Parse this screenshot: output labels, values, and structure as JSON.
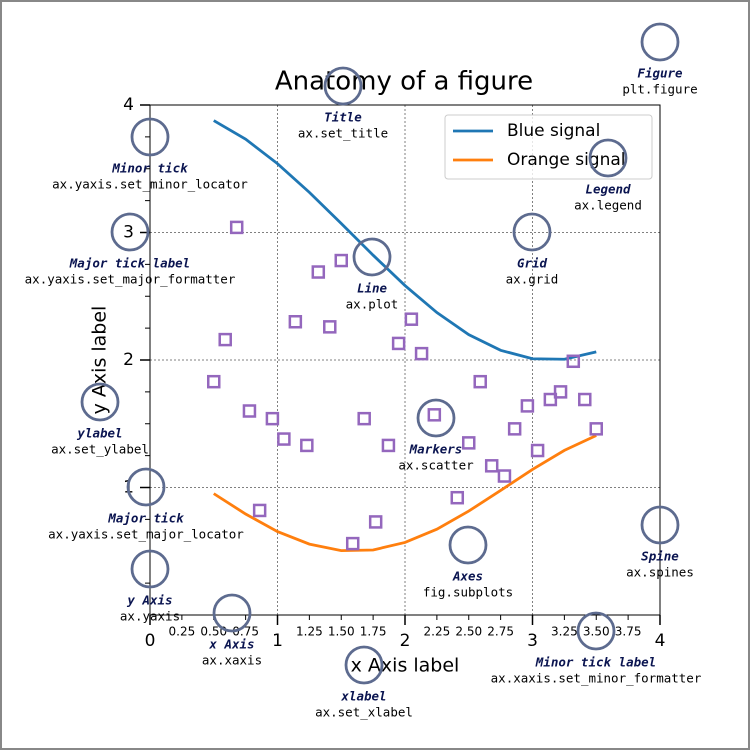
{
  "chart_data": {
    "type": "line",
    "title": "Anatomy of a figure",
    "xlabel": "x Axis label",
    "ylabel": "y Axis label",
    "xlim": [
      0,
      4
    ],
    "ylim": [
      0,
      4
    ],
    "xticks": [
      0,
      1,
      2,
      3,
      4
    ],
    "yticks": [
      1,
      2,
      3,
      4
    ],
    "xminorticks": [
      0.25,
      {
        "value": 0.5,
        "label": "0.50"
      },
      0.75,
      1.25,
      {
        "value": 1.5,
        "label": "1.50"
      },
      1.75,
      2.25,
      {
        "value": 2.5,
        "label": "2.50"
      },
      2.75,
      3.25,
      {
        "value": 3.5,
        "label": "3.50"
      },
      3.75
    ],
    "yminorticks": [
      0.25,
      0.5,
      0.75,
      1.25,
      1.5,
      1.75,
      2.25,
      2.5,
      2.75,
      3.25,
      3.5,
      3.75
    ],
    "grid": true,
    "legend": "upper right",
    "x": [
      0.5,
      0.75,
      1.0,
      1.25,
      1.5,
      1.75,
      2.0,
      2.25,
      2.5,
      2.75,
      3.0,
      3.25,
      3.5
    ],
    "series": [
      {
        "name": "Blue signal",
        "color": "#1f77b4",
        "values": [
          3.878,
          3.732,
          3.54,
          3.315,
          3.071,
          2.822,
          2.584,
          2.372,
          2.199,
          2.076,
          2.01,
          2.006,
          2.064
        ]
      },
      {
        "name": "Orange signal",
        "color": "#ff7f0e",
        "values": [
          0.952,
          0.792,
          0.654,
          0.556,
          0.505,
          0.51,
          0.569,
          0.673,
          0.815,
          0.977,
          1.142,
          1.291,
          1.408
        ]
      }
    ],
    "scatter": {
      "color": "#9467bd",
      "x": [
        0.68,
        0.59,
        0.5,
        0.78,
        0.96,
        1.05,
        1.23,
        0.86,
        1.32,
        1.5,
        1.14,
        1.41,
        1.68,
        1.87,
        1.77,
        1.59,
        2.05,
        1.95,
        2.13,
        2.23,
        2.5,
        2.41,
        2.59,
        2.68,
        2.78,
        2.86,
        2.96,
        3.04,
        3.14,
        3.22,
        3.32,
        3.41,
        3.5
      ],
      "values": [
        3.04,
        2.16,
        1.83,
        1.6,
        1.54,
        1.38,
        1.33,
        0.82,
        2.69,
        2.78,
        2.3,
        2.26,
        1.54,
        1.33,
        0.73,
        0.56,
        2.32,
        2.13,
        2.05,
        1.57,
        1.35,
        0.92,
        1.83,
        1.17,
        1.09,
        1.46,
        1.64,
        1.29,
        1.69,
        1.75,
        1.99,
        1.69,
        1.46
      ]
    },
    "annotations": [
      {
        "label": "Figure",
        "code": "plt.figure"
      },
      {
        "label": "Title",
        "code": "ax.set_title"
      },
      {
        "label": "Minor tick",
        "code": "ax.yaxis.set_minor_locator"
      },
      {
        "label": "Legend",
        "code": "ax.legend"
      },
      {
        "label": "Major tick label",
        "code": "ax.yaxis.set_major_formatter"
      },
      {
        "label": "Grid",
        "code": "ax.grid"
      },
      {
        "label": "Line",
        "code": "ax.plot"
      },
      {
        "label": "ylabel",
        "code": "ax.set_ylabel"
      },
      {
        "label": "Markers",
        "code": "ax.scatter"
      },
      {
        "label": "Major tick",
        "code": "ax.yaxis.set_major_locator"
      },
      {
        "label": "Axes",
        "code": "fig.subplots"
      },
      {
        "label": "Spine",
        "code": "ax.spines"
      },
      {
        "label": "y Axis",
        "code": "ax.yaxis"
      },
      {
        "label": "x Axis",
        "code": "ax.xaxis"
      },
      {
        "label": "xlabel",
        "code": "ax.set_xlabel"
      },
      {
        "label": "Minor tick label",
        "code": "ax.xaxis.set_minor_formatter"
      }
    ]
  }
}
